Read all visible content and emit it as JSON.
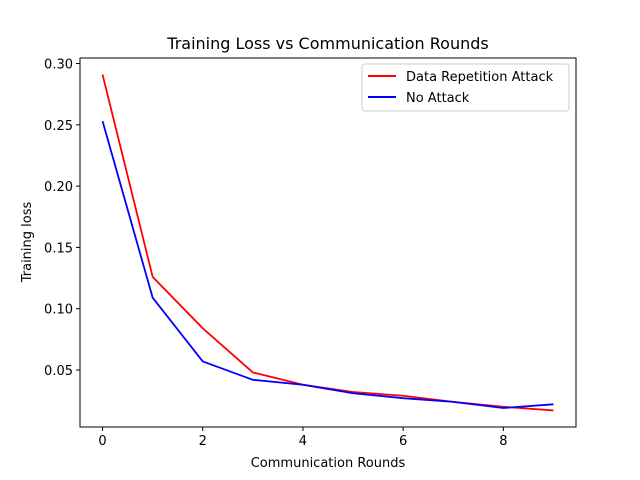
{
  "chart_data": {
    "type": "line",
    "title": "Training Loss vs Communication Rounds",
    "xlabel": "Communication Rounds",
    "ylabel": "Training loss",
    "xlim": [
      -0.45,
      9.45
    ],
    "ylim": [
      0.0035,
      0.3045
    ],
    "xticks": [
      0,
      2,
      4,
      6,
      8
    ],
    "xtick_labels": [
      "0",
      "2",
      "4",
      "6",
      "8"
    ],
    "yticks": [
      0.05,
      0.1,
      0.15,
      0.2,
      0.25,
      0.3
    ],
    "ytick_labels": [
      "0.05",
      "0.10",
      "0.15",
      "0.20",
      "0.25",
      "0.30"
    ],
    "grid": false,
    "legend_position": "top-right",
    "x": [
      0,
      1,
      2,
      3,
      4,
      5,
      6,
      7,
      8,
      9
    ],
    "series": [
      {
        "name": "Data Repetition Attack",
        "color": "#ff0000",
        "values": [
          0.291,
          0.126,
          0.084,
          0.048,
          0.038,
          0.032,
          0.029,
          0.024,
          0.02,
          0.017
        ]
      },
      {
        "name": "No Attack",
        "color": "#0000ff",
        "values": [
          0.253,
          0.109,
          0.057,
          0.042,
          0.038,
          0.031,
          0.027,
          0.024,
          0.019,
          0.022
        ]
      }
    ]
  }
}
